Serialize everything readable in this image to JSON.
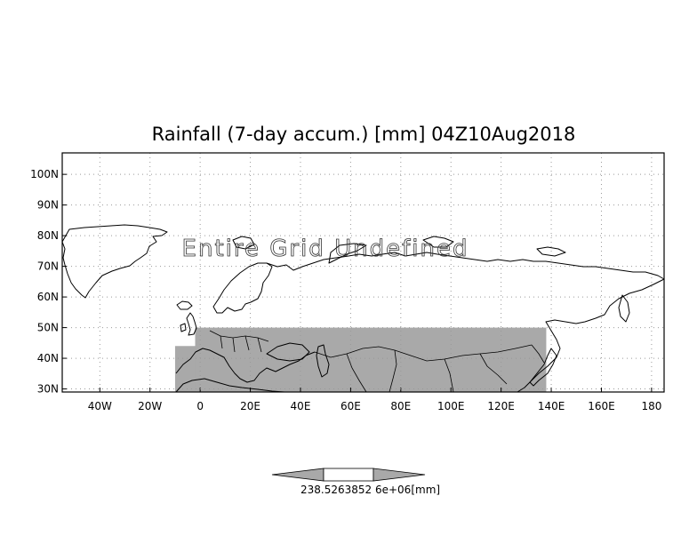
{
  "map": {
    "title": "Rainfall (7-day accum.) [mm] 04Z10Aug2018",
    "overlay_message": "Entire Grid Undefined",
    "lon_range": [
      -55,
      185
    ],
    "lat_range": [
      29,
      107
    ],
    "lon_ticks": [
      {
        "value": -40,
        "label": "40W"
      },
      {
        "value": -20,
        "label": "20W"
      },
      {
        "value": 0,
        "label": "0"
      },
      {
        "value": 20,
        "label": "20E"
      },
      {
        "value": 40,
        "label": "40E"
      },
      {
        "value": 60,
        "label": "60E"
      },
      {
        "value": 80,
        "label": "80E"
      },
      {
        "value": 100,
        "label": "100E"
      },
      {
        "value": 120,
        "label": "120E"
      },
      {
        "value": 140,
        "label": "140E"
      },
      {
        "value": 160,
        "label": "160E"
      },
      {
        "value": 180,
        "label": "180"
      }
    ],
    "lat_ticks": [
      {
        "value": 30,
        "label": "30N"
      },
      {
        "value": 40,
        "label": "40N"
      },
      {
        "value": 50,
        "label": "50N"
      },
      {
        "value": 60,
        "label": "60N"
      },
      {
        "value": 70,
        "label": "70N"
      },
      {
        "value": 80,
        "label": "80N"
      },
      {
        "value": 90,
        "label": "90N"
      },
      {
        "value": 100,
        "label": "100N"
      }
    ],
    "shaded_region": {
      "lon": [
        -2,
        138
      ],
      "lat": [
        29,
        50
      ],
      "color": "#a9a9a9"
    },
    "shaded_extra": {
      "lon": [
        -10,
        -2
      ],
      "lat": [
        29,
        44
      ],
      "color": "#a9a9a9"
    },
    "colors": {
      "shade": "#a9a9a9",
      "coast": "#000000",
      "grid": "#999999"
    }
  },
  "colorbar": {
    "label_text": "238.5263852 6e+06[mm]",
    "unit": "[mm]",
    "color_left": "#a9a9a9",
    "color_mid": "#ffffff",
    "color_right": "#a9a9a9"
  }
}
